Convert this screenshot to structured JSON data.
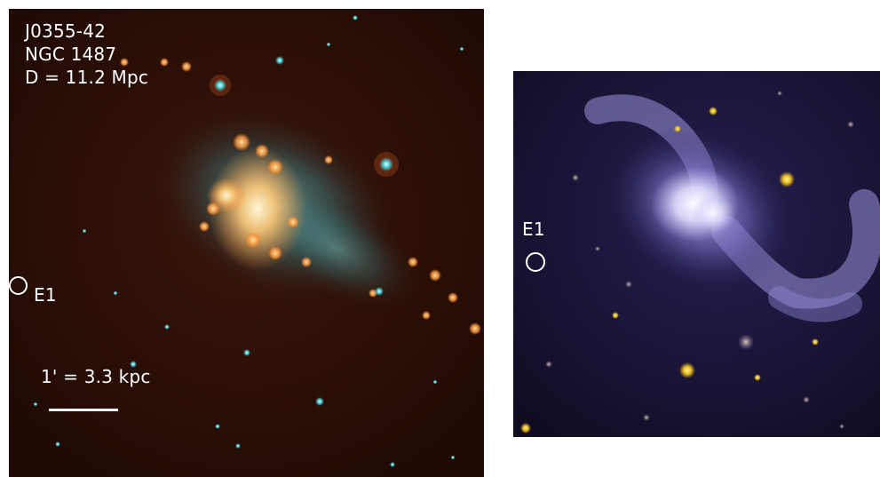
{
  "left_panel": {
    "title_lines": [
      "J0355-42",
      "NGC 1487",
      "D = 11.2 Mpc"
    ],
    "e1_label": "E1",
    "scale_label": "1' = 3.3 kpc"
  },
  "right_panel": {
    "e1_label": "E1"
  },
  "colors": {
    "left_background": "#2a0d06",
    "left_star_color": "#4fd6e0",
    "left_knot_color": "#ff9a3c",
    "right_background": "#14102a",
    "right_galaxy_color": "#b8b4f0",
    "right_star_color": "#f0c020",
    "marker_color": "#ffffff"
  }
}
